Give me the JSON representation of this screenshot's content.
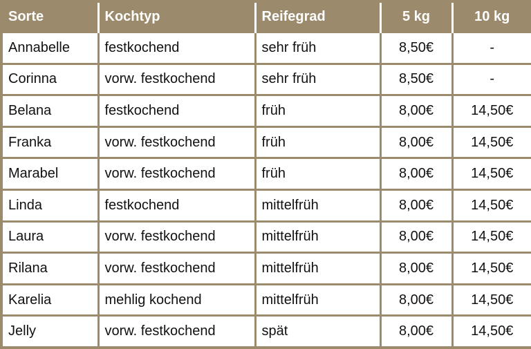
{
  "table": {
    "header": [
      "Sorte",
      "Kochtyp",
      "Reifegrad",
      "5 kg",
      "10 kg"
    ],
    "rows": [
      [
        "Annabelle",
        "festkochend",
        "sehr früh",
        "8,50€",
        "-"
      ],
      [
        "Corinna",
        "vorw. festkochend",
        "sehr früh",
        "8,50€",
        "-"
      ],
      [
        "Belana",
        "festkochend",
        "früh",
        "8,00€",
        "14,50€"
      ],
      [
        "Franka",
        "vorw. festkochend",
        "früh",
        "8,00€",
        "14,50€"
      ],
      [
        "Marabel",
        "vorw. festkochend",
        "früh",
        "8,00€",
        "14,50€"
      ],
      [
        "Linda",
        "festkochend",
        "mittelfrüh",
        "8,00€",
        "14,50€"
      ],
      [
        "Laura",
        "vorw. festkochend",
        "mittelfrüh",
        "8,00€",
        "14,50€"
      ],
      [
        "Rilana",
        "vorw. festkochend",
        "mittelfrüh",
        "8,00€",
        "14,50€"
      ],
      [
        "Karelia",
        "mehlig kochend",
        "mittelfrüh",
        "8,00€",
        "14,50€"
      ],
      [
        "Jelly",
        "vorw. festkochend",
        "spät",
        "8,00€",
        "14,50€"
      ]
    ]
  }
}
